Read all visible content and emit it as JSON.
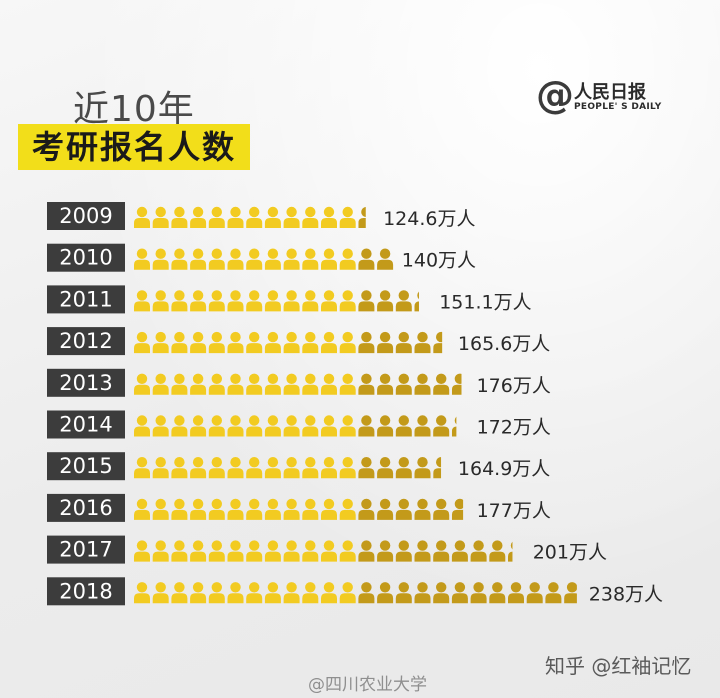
{
  "header": {
    "subtitle": "近10年",
    "title": "考研报名人数"
  },
  "brand": {
    "mark": "@",
    "name": "人民日报",
    "sub": "PEOPLE' S DAILY"
  },
  "footer": {
    "left": "@四川农业大学",
    "right": "知乎 @红袖记忆"
  },
  "colors": {
    "year_box": "#3c3c3c",
    "icon_light": "#f2cb21",
    "icon_dark": "#c39a1a",
    "value_text": "#2a2a2a"
  },
  "chart_data": {
    "type": "bar",
    "title": "考研报名人数",
    "unit": "万人",
    "categories": [
      "2009",
      "2010",
      "2011",
      "2012",
      "2013",
      "2014",
      "2015",
      "2016",
      "2017",
      "2018"
    ],
    "values": [
      124.6,
      140,
      151.1,
      165.6,
      176,
      172,
      164.9,
      177,
      201,
      238
    ],
    "value_labels": [
      "124.6万人",
      "140万人",
      "151.1万人",
      "165.6万人",
      "176万人",
      "172万人",
      "164.9万人",
      "177万人",
      "201万人",
      "238万人"
    ],
    "icon_unit_value": 10,
    "light_icon_max_count": 12
  }
}
